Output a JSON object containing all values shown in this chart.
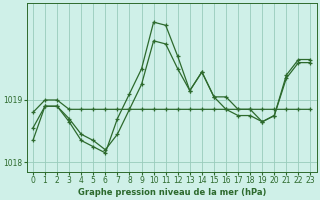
{
  "title": "Graphe pression niveau de la mer (hPa)",
  "bg_color": "#cff0e8",
  "grid_color": "#99ccbb",
  "line_color": "#2d6a2d",
  "ylim": [
    1017.85,
    1020.55
  ],
  "yticks": [
    1018,
    1019
  ],
  "xlim": [
    -0.5,
    23.5
  ],
  "xticks": [
    0,
    1,
    2,
    3,
    4,
    5,
    6,
    7,
    8,
    9,
    10,
    11,
    12,
    13,
    14,
    15,
    16,
    17,
    18,
    19,
    20,
    21,
    22,
    23
  ],
  "line1_x": [
    0,
    1,
    2,
    3,
    4,
    5,
    6,
    7,
    8,
    9,
    10,
    11,
    12,
    13,
    14,
    15,
    16,
    17,
    18,
    19,
    20,
    21,
    22,
    23
  ],
  "line1_y": [
    1018.8,
    1019.0,
    1019.0,
    1018.85,
    1018.85,
    1018.85,
    1018.85,
    1018.85,
    1018.85,
    1018.85,
    1018.85,
    1018.85,
    1018.85,
    1018.85,
    1018.85,
    1018.85,
    1018.85,
    1018.85,
    1018.85,
    1018.85,
    1018.85,
    1018.85,
    1018.85,
    1018.85
  ],
  "line2_x": [
    0,
    1,
    2,
    3,
    4,
    5,
    6,
    7,
    8,
    9,
    10,
    11,
    12,
    13,
    14,
    15,
    16,
    17,
    18,
    19,
    20,
    21,
    22,
    23
  ],
  "line2_y": [
    1018.35,
    1018.9,
    1018.9,
    1018.65,
    1018.35,
    1018.25,
    1018.15,
    1018.7,
    1019.1,
    1019.5,
    1020.25,
    1020.2,
    1019.7,
    1019.15,
    1019.45,
    1019.05,
    1018.85,
    1018.75,
    1018.75,
    1018.65,
    1018.75,
    1019.4,
    1019.65,
    1019.65
  ],
  "line3_x": [
    0,
    1,
    2,
    3,
    4,
    5,
    6,
    7,
    8,
    9,
    10,
    11,
    12,
    13,
    14,
    15,
    16,
    17,
    18,
    19,
    20,
    21,
    22,
    23
  ],
  "line3_y": [
    1018.55,
    1018.9,
    1018.9,
    1018.7,
    1018.45,
    1018.35,
    1018.2,
    1018.45,
    1018.85,
    1019.25,
    1019.95,
    1019.9,
    1019.5,
    1019.15,
    1019.45,
    1019.05,
    1019.05,
    1018.85,
    1018.85,
    1018.65,
    1018.75,
    1019.35,
    1019.6,
    1019.6
  ]
}
